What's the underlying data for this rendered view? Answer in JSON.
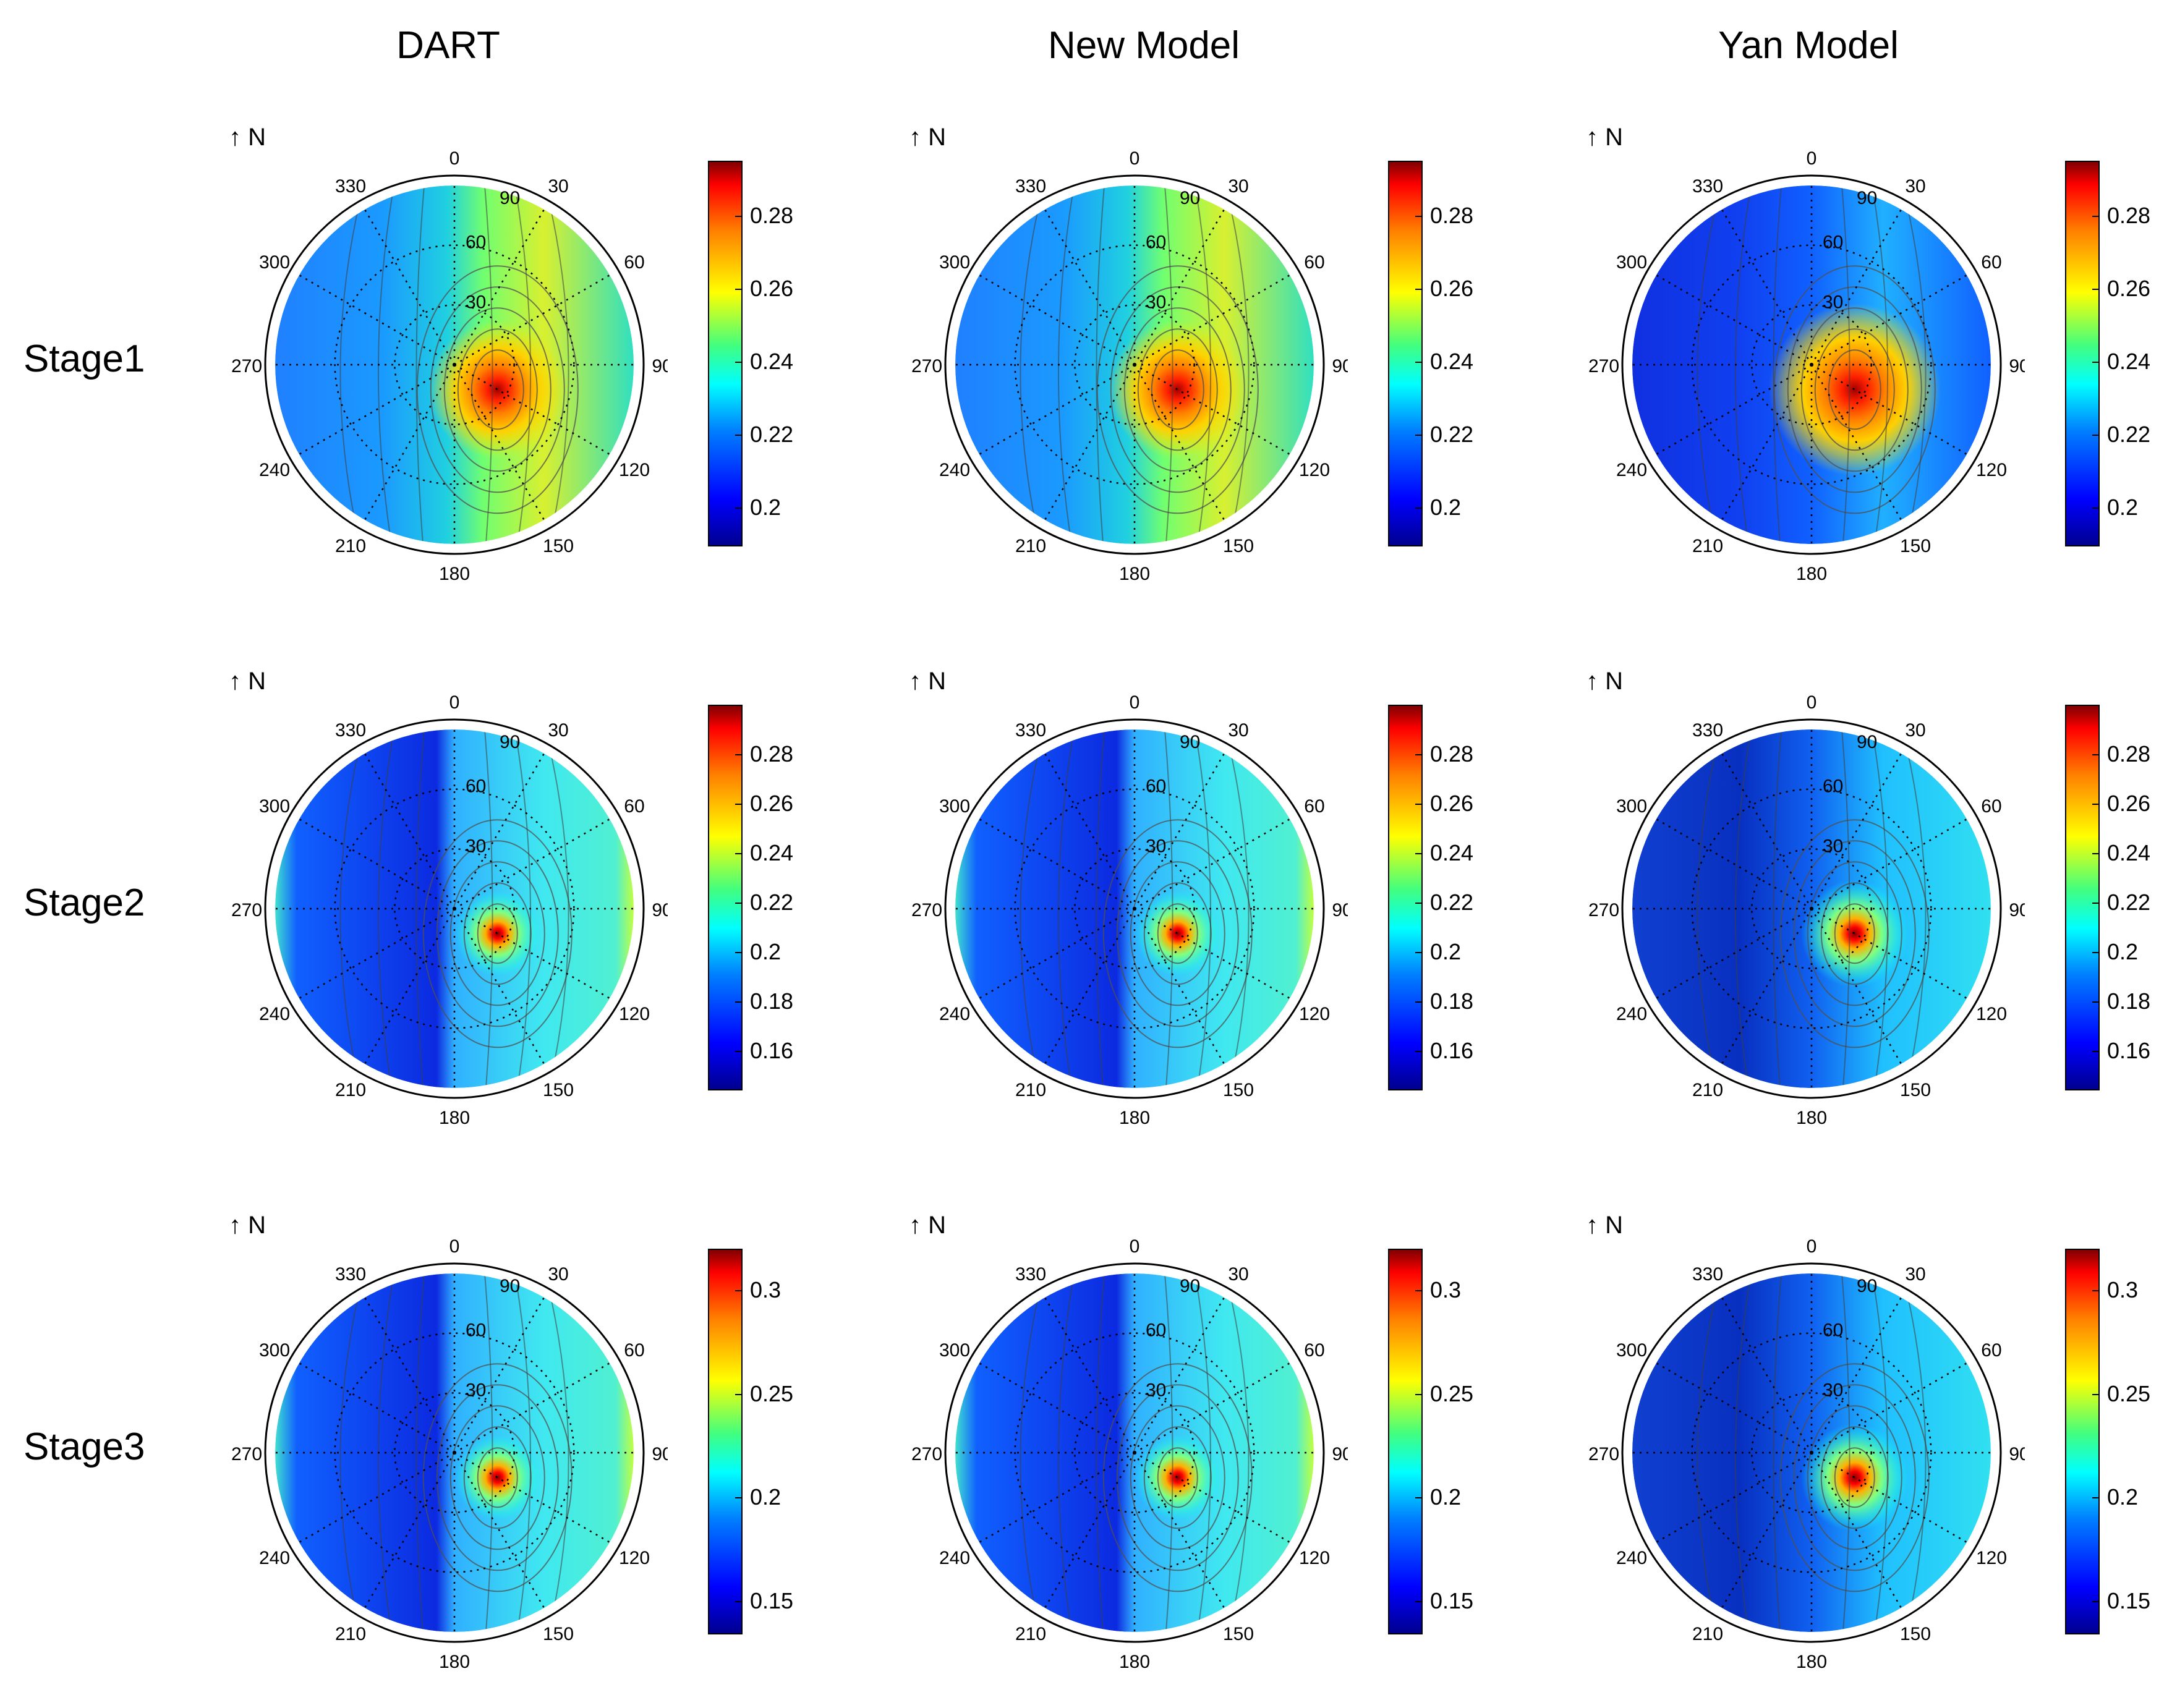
{
  "column_titles": [
    "DART",
    "New Model",
    "Yan Model"
  ],
  "row_titles": [
    "Stage1",
    "Stage2",
    "Stage3"
  ],
  "north_label": "↑ N",
  "azimuth_labels": [
    "0",
    "30",
    "60",
    "90",
    "120",
    "150",
    "180",
    "210",
    "240",
    "270",
    "300",
    "330"
  ],
  "zenith_labels": [
    "30",
    "60",
    "90"
  ],
  "chart_data": [
    {
      "type": "heatmap",
      "stage": "Stage1",
      "model": "DART",
      "colorbar": {
        "ticks": [
          0.2,
          0.22,
          0.24,
          0.26,
          0.28
        ],
        "range": [
          0.19,
          0.295
        ]
      },
      "hotspot": {
        "azimuth_deg": 120,
        "zenith_deg": 25
      },
      "pattern": "stage1",
      "grid": true
    },
    {
      "type": "heatmap",
      "stage": "Stage1",
      "model": "New Model",
      "colorbar": {
        "ticks": [
          0.2,
          0.22,
          0.24,
          0.26,
          0.28
        ],
        "range": [
          0.19,
          0.295
        ]
      },
      "hotspot": {
        "azimuth_deg": 120,
        "zenith_deg": 25
      },
      "pattern": "stage1",
      "grid": true
    },
    {
      "type": "heatmap",
      "stage": "Stage1",
      "model": "Yan Model",
      "colorbar": {
        "ticks": [
          0.2,
          0.22,
          0.24,
          0.26,
          0.28
        ],
        "range": [
          0.19,
          0.295
        ]
      },
      "hotspot": {
        "azimuth_deg": 120,
        "zenith_deg": 25
      },
      "pattern": "stage1_yan",
      "grid": true
    },
    {
      "type": "heatmap",
      "stage": "Stage2",
      "model": "DART",
      "colorbar": {
        "ticks": [
          0.16,
          0.18,
          0.2,
          0.22,
          0.24,
          0.26,
          0.28
        ],
        "range": [
          0.145,
          0.3
        ]
      },
      "hotspot": {
        "azimuth_deg": 120,
        "zenith_deg": 25
      },
      "pattern": "stage2",
      "grid": true
    },
    {
      "type": "heatmap",
      "stage": "Stage2",
      "model": "New Model",
      "colorbar": {
        "ticks": [
          0.16,
          0.18,
          0.2,
          0.22,
          0.24,
          0.26,
          0.28
        ],
        "range": [
          0.145,
          0.3
        ]
      },
      "hotspot": {
        "azimuth_deg": 120,
        "zenith_deg": 25
      },
      "pattern": "stage2",
      "grid": true
    },
    {
      "type": "heatmap",
      "stage": "Stage2",
      "model": "Yan Model",
      "colorbar": {
        "ticks": [
          0.16,
          0.18,
          0.2,
          0.22,
          0.24,
          0.26,
          0.28
        ],
        "range": [
          0.145,
          0.3
        ]
      },
      "hotspot": {
        "azimuth_deg": 120,
        "zenith_deg": 25
      },
      "pattern": "stage2_yan",
      "grid": true
    },
    {
      "type": "heatmap",
      "stage": "Stage3",
      "model": "DART",
      "colorbar": {
        "ticks": [
          0.15,
          0.2,
          0.25,
          0.3
        ],
        "range": [
          0.135,
          0.32
        ]
      },
      "hotspot": {
        "azimuth_deg": 120,
        "zenith_deg": 25
      },
      "pattern": "stage3",
      "grid": true
    },
    {
      "type": "heatmap",
      "stage": "Stage3",
      "model": "New Model",
      "colorbar": {
        "ticks": [
          0.15,
          0.2,
          0.25,
          0.3
        ],
        "range": [
          0.135,
          0.32
        ]
      },
      "hotspot": {
        "azimuth_deg": 120,
        "zenith_deg": 25
      },
      "pattern": "stage3",
      "grid": true
    },
    {
      "type": "heatmap",
      "stage": "Stage3",
      "model": "Yan Model",
      "colorbar": {
        "ticks": [
          0.15,
          0.2,
          0.25,
          0.3
        ],
        "range": [
          0.135,
          0.32
        ]
      },
      "hotspot": {
        "azimuth_deg": 120,
        "zenith_deg": 25
      },
      "pattern": "stage3_yan",
      "grid": true
    }
  ]
}
